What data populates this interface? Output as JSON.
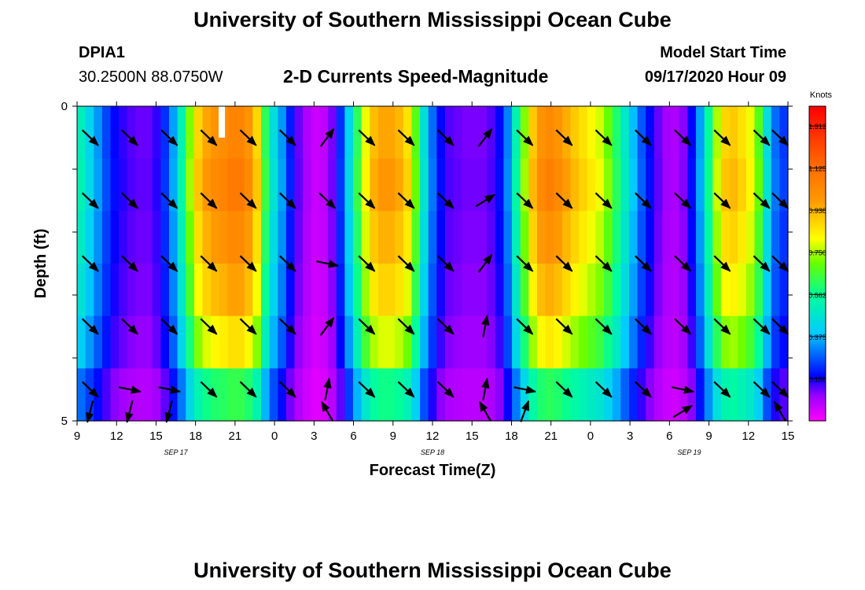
{
  "page": {
    "title": "University of Southern Mississippi Ocean Cube",
    "footer_title": "University of Southern Mississippi Ocean Cube",
    "station": "DPIA1",
    "coords": "30.2500N 88.0750W",
    "model_label": "Model Start Time",
    "model_time": "09/17/2020 Hour 09",
    "subtitle": "2-D Currents Speed-Magnitude"
  },
  "chart_data": {
    "type": "heatmap",
    "title": "2-D Currents Speed-Magnitude",
    "xlabel": "Forecast Time(Z)",
    "ylabel": "Depth (ft)",
    "xlim": [
      0,
      54
    ],
    "ylim": [
      0,
      5
    ],
    "x_ticks": [
      {
        "x": 0,
        "label": "9"
      },
      {
        "x": 3,
        "label": "12"
      },
      {
        "x": 6,
        "label": "15"
      },
      {
        "x": 9,
        "label": "18"
      },
      {
        "x": 12,
        "label": "21"
      },
      {
        "x": 15,
        "label": "0"
      },
      {
        "x": 18,
        "label": "3"
      },
      {
        "x": 21,
        "label": "6"
      },
      {
        "x": 24,
        "label": "9"
      },
      {
        "x": 27,
        "label": "12"
      },
      {
        "x": 30,
        "label": "15"
      },
      {
        "x": 33,
        "label": "18"
      },
      {
        "x": 36,
        "label": "21"
      },
      {
        "x": 39,
        "label": "0"
      },
      {
        "x": 42,
        "label": "3"
      },
      {
        "x": 45,
        "label": "6"
      },
      {
        "x": 48,
        "label": "9"
      },
      {
        "x": 51,
        "label": "12"
      },
      {
        "x": 54,
        "label": "15"
      }
    ],
    "y_ticks": [
      {
        "y": 0,
        "label": "0"
      },
      {
        "y": 5,
        "label": "5"
      }
    ],
    "day_labels": [
      {
        "x": 7.5,
        "label": "SEP 17"
      },
      {
        "x": 27,
        "label": "SEP 18"
      },
      {
        "x": 46.5,
        "label": "SEP 19"
      }
    ],
    "colorbar": {
      "unit": "Knots",
      "min": 0,
      "max": 1.4,
      "ticks": [
        "1.312",
        "1.125",
        "0.938",
        "0.750",
        "0.562",
        "0.375",
        "0.188"
      ],
      "tick_values": [
        1.312,
        1.125,
        0.938,
        0.75,
        0.562,
        0.375,
        0.188
      ]
    },
    "depth_levels": [
      0.5,
      1.5,
      2.5,
      3.5,
      4.5
    ],
    "layer_multipliers": [
      1.0,
      1.03,
      0.98,
      0.92,
      0.82,
      0.6
    ],
    "surface_speed": [
      0.5,
      0.42,
      0.34,
      0.26,
      0.2,
      0.17,
      0.15,
      0.14,
      0.14,
      0.17,
      0.24,
      0.35,
      0.52,
      0.72,
      0.88,
      0.96,
      1.0,
      1.02,
      1.05,
      1.05,
      1.0,
      0.88,
      0.62,
      0.45,
      0.34,
      0.22,
      0.14,
      0.09,
      0.06,
      0.07,
      0.13,
      0.24,
      0.42,
      0.62,
      0.8,
      0.92,
      0.96,
      0.96,
      0.93,
      0.86,
      0.68,
      0.45,
      0.3,
      0.2,
      0.15,
      0.14,
      0.13,
      0.13,
      0.13,
      0.15,
      0.2,
      0.32,
      0.52,
      0.72,
      0.9,
      1.0,
      1.03,
      1.0,
      0.95,
      0.9,
      0.86,
      0.82,
      0.78,
      0.7,
      0.6,
      0.48,
      0.38,
      0.28,
      0.2,
      0.14,
      0.1,
      0.09,
      0.12,
      0.2,
      0.35,
      0.55,
      0.75,
      0.88,
      0.9,
      0.86,
      0.8,
      0.68,
      0.45,
      0.3,
      0.25
    ],
    "missing_bar": {
      "x": 11,
      "depth_range": [
        0,
        0.5
      ]
    },
    "arrow_times": [
      1,
      4,
      7,
      10,
      13,
      16,
      19,
      22,
      25,
      28,
      31,
      34,
      37,
      40,
      43,
      46,
      49,
      52,
      54
    ],
    "arrow_dirs": [
      [
        "se",
        "se",
        "se",
        "se",
        "se",
        "se",
        "ne",
        "se",
        "se",
        "se",
        "ne",
        "se",
        "se",
        "se",
        "se",
        "se",
        "se",
        "se",
        "se"
      ],
      [
        "se",
        "se",
        "se",
        "se",
        "se",
        "se",
        "se",
        "se",
        "se",
        "se",
        "ene",
        "se",
        "se",
        "se",
        "se",
        "se",
        "se",
        "se",
        "se"
      ],
      [
        "se",
        "se",
        "se",
        "se",
        "se",
        "se",
        "e",
        "se",
        "se",
        "se",
        "ne",
        "se",
        "se",
        "se",
        "se",
        "se",
        "se",
        "se",
        "se"
      ],
      [
        "se",
        "se",
        "se",
        "se",
        "se",
        "se",
        "ne",
        "se",
        "se",
        "se",
        "n",
        "se",
        "se",
        "se",
        "se",
        "se",
        "se",
        "se",
        "se"
      ],
      [
        "se",
        "e",
        "e",
        "se",
        "se",
        "se",
        "n",
        "se",
        "se",
        "se",
        "n",
        "e",
        "se",
        "se",
        "se",
        "e",
        "se",
        "se",
        "se"
      ],
      [
        "s",
        "s",
        "s",
        "",
        "",
        "",
        "nw",
        "",
        "",
        "",
        "nw",
        "nne",
        "",
        "",
        "",
        "ene",
        "",
        "",
        "nw"
      ]
    ]
  }
}
